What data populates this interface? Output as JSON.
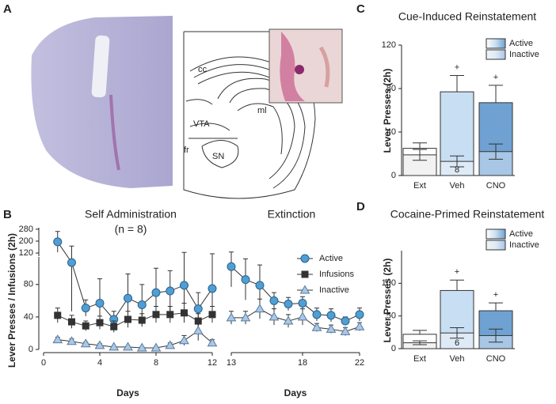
{
  "panel_labels": [
    "A",
    "B",
    "C",
    "D"
  ],
  "panel_a": {
    "labels": [
      "cc",
      "ml",
      "VTA",
      "fr",
      "SN"
    ]
  },
  "chart_data": [
    {
      "type": "line",
      "title": "Self Administration",
      "subtitle": "(n = 8)",
      "x_label": "Days",
      "y_label": "Lever Presses / Infusions (2h)",
      "x": [
        1,
        2,
        3,
        4,
        5,
        6,
        7,
        8,
        9,
        10,
        11,
        12
      ],
      "xlim": [
        0,
        12
      ],
      "xticks": [
        0,
        4,
        8,
        12
      ],
      "ylim": [
        0,
        110
      ],
      "yticks": [
        0,
        40,
        80
      ],
      "y_break": {
        "ylim": [
          115,
          290
        ],
        "yticks": [
          120,
          200,
          280
        ]
      },
      "series": [
        {
          "color": "#4f9fd5",
          "marker": "circle",
          "values": [
            195,
            107,
            51,
            57,
            37,
            63,
            55,
            70,
            72,
            79,
            50,
            75
          ],
          "errors": [
            70,
            60,
            10,
            30,
            10,
            30,
            25,
            30,
            25,
            45,
            20,
            40
          ]
        },
        {
          "color": "#333333",
          "marker": "square",
          "values": [
            42,
            34,
            29,
            33,
            28,
            37,
            36,
            43,
            43,
            45,
            35,
            43
          ],
          "errors": [
            9,
            8,
            6,
            8,
            7,
            10,
            8,
            10,
            10,
            12,
            9,
            10
          ]
        },
        {
          "color": "#a9c8e8",
          "marker": "triangle",
          "values": [
            12,
            10,
            7,
            5,
            3,
            3,
            2,
            2,
            5,
            11,
            23,
            8
          ],
          "errors": [
            3,
            3,
            2,
            2,
            1,
            1,
            1,
            1,
            3,
            6,
            12,
            4
          ]
        }
      ]
    },
    {
      "type": "line",
      "title": "Extinction",
      "x_label": "Days",
      "x": [
        13,
        14,
        15,
        16,
        17,
        18,
        19,
        20,
        21,
        22
      ],
      "xlim": [
        13,
        22
      ],
      "xticks": [
        13,
        18,
        22
      ],
      "ylim": [
        0,
        110
      ],
      "y_break": {
        "ylim": [
          115,
          290
        ]
      },
      "legend": "upper right",
      "series": [
        {
          "name": "Active",
          "color": "#4f9fd5",
          "marker": "circle",
          "values": [
            102,
            86,
            79,
            60,
            56,
            57,
            43,
            42,
            35,
            43
          ],
          "errors": [
            25,
            25,
            25,
            10,
            8,
            8,
            8,
            8,
            5,
            8
          ]
        },
        {
          "name": "Infusions",
          "color": "#333333",
          "marker": "square"
        },
        {
          "name": "Inactive",
          "color": "#a9c8e8",
          "marker": "triangle",
          "values": [
            39,
            39,
            50,
            40,
            35,
            40,
            27,
            25,
            22,
            28
          ],
          "errors": [
            8,
            8,
            12,
            10,
            8,
            10,
            5,
            5,
            5,
            5
          ]
        }
      ]
    },
    {
      "type": "bar",
      "title": "Cue-Induced Reinstatement",
      "y_label": "Lever Presses (2h)",
      "categories": [
        "Ext",
        "Veh",
        "CNO"
      ],
      "ylim": [
        0,
        120
      ],
      "yticks": [
        0,
        40,
        80,
        120
      ],
      "legend": "upper right",
      "series": [
        {
          "name": "Active",
          "colors": [
            "#ffffff",
            "#c8def2",
            "#6fa2d2"
          ],
          "values": [
            25,
            77,
            67
          ],
          "errors": [
            5,
            15,
            16
          ]
        },
        {
          "name": "Inactive",
          "colors": [
            "#f2f2f2",
            "#deeaf6",
            "#a8c6e5"
          ],
          "values": [
            19,
            13,
            22
          ],
          "errors": [
            5,
            5,
            7
          ]
        }
      ],
      "annotations": [
        {
          "text": "+",
          "category": 1,
          "series": 0
        },
        {
          "text": "+",
          "category": 2,
          "series": 0
        },
        {
          "text": "8",
          "category": 1,
          "series": 1
        }
      ]
    },
    {
      "type": "bar",
      "title": "Cocaine-Primed Reinstatement",
      "y_label": "Lever Presses (2h)",
      "categories": [
        "Ext",
        "Veh",
        "CNO"
      ],
      "ylim": [
        0,
        150
      ],
      "yticks": [
        0,
        50,
        100
      ],
      "legend": "upper right",
      "series": [
        {
          "name": "Active",
          "colors": [
            "#ffffff",
            "#c8def2",
            "#6fa2d2"
          ],
          "values": [
            22,
            89,
            58
          ],
          "errors": [
            6,
            16,
            12
          ]
        },
        {
          "name": "Inactive",
          "colors": [
            "#f2f2f2",
            "#deeaf6",
            "#a8c6e5"
          ],
          "values": [
            9,
            24,
            20
          ],
          "errors": [
            3,
            8,
            10
          ]
        }
      ],
      "annotations": [
        {
          "text": "+",
          "category": 1,
          "series": 0
        },
        {
          "text": "+",
          "category": 2,
          "series": 0
        },
        {
          "text": "6",
          "category": 1,
          "series": 1
        }
      ]
    }
  ]
}
